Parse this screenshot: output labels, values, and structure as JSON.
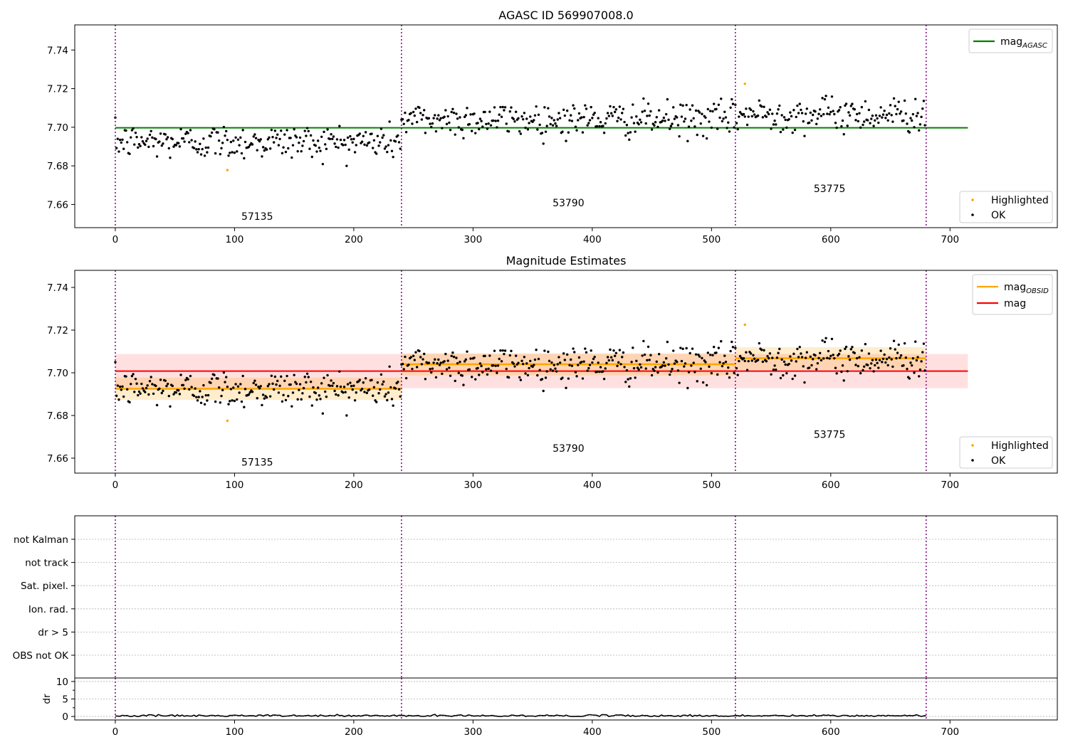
{
  "chart_data": [
    {
      "type": "scatter",
      "title": "AGASC ID 569907008.0",
      "xlabel": "",
      "ylabel": "",
      "xlim": [
        -34,
        790
      ],
      "ylim": [
        7.648,
        7.753
      ],
      "x_ticks": [
        "0",
        "100",
        "200",
        "300",
        "400",
        "500",
        "600",
        "700"
      ],
      "y_ticks": [
        "7.66",
        "7.68",
        "7.70",
        "7.72",
        "7.74"
      ],
      "legend_top": {
        "placement": "top-right",
        "entries": [
          {
            "label": "mag",
            "subscript": "AGASC",
            "color": "#008000"
          }
        ]
      },
      "legend_bottom": {
        "placement": "bottom-right",
        "entries": [
          {
            "label": "Highlighted",
            "color": "#ffa500"
          },
          {
            "label": "OK",
            "color": "#000000"
          }
        ]
      },
      "lines": [
        {
          "x": [
            0,
            715
          ],
          "y": [
            7.6997,
            7.6997
          ],
          "color": "#008000"
        }
      ],
      "obsid_labels": [
        {
          "text": "57135",
          "x": 119,
          "y": 7.652
        },
        {
          "text": "53790",
          "x": 380,
          "y": 7.659
        },
        {
          "text": "53775",
          "x": 599,
          "y": 7.6665
        }
      ],
      "highlighted": [
        {
          "x": 94,
          "y": 7.6778
        },
        {
          "x": 528,
          "y": 7.7225
        }
      ],
      "grid": false
    },
    {
      "type": "scatter",
      "title": "Magnitude Estimates",
      "xlabel": "",
      "ylabel": "",
      "xlim": [
        -34,
        790
      ],
      "ylim": [
        7.653,
        7.748
      ],
      "x_ticks": [
        "0",
        "100",
        "200",
        "300",
        "400",
        "500",
        "600",
        "700"
      ],
      "y_ticks": [
        "7.66",
        "7.68",
        "7.70",
        "7.72",
        "7.74"
      ],
      "legend_top": {
        "placement": "top-right",
        "entries": [
          {
            "label": "mag",
            "subscript": "OBSID",
            "color": "#ffa500"
          },
          {
            "label": "mag",
            "color": "#ff0000"
          }
        ]
      },
      "legend_bottom": {
        "placement": "bottom-right",
        "entries": [
          {
            "label": "Highlighted",
            "color": "#ffa500"
          },
          {
            "label": "OK",
            "color": "#000000"
          }
        ]
      },
      "mag_band": {
        "x": [
          0,
          715
        ],
        "y_low": 7.6928,
        "y_high": 7.7088,
        "mean": 7.7008,
        "color": "#ff0000"
      },
      "obsid_bands": [
        {
          "x": [
            0,
            240
          ],
          "mean": 7.6925,
          "y_low": 7.6873,
          "y_high": 7.6977
        },
        {
          "x": [
            240,
            520
          ],
          "mean": 7.704,
          "y_low": 7.6988,
          "y_high": 7.7092
        },
        {
          "x": [
            520,
            680
          ],
          "mean": 7.7068,
          "y_low": 7.7016,
          "y_high": 7.712
        }
      ],
      "obsid_labels": [
        {
          "text": "57135",
          "x": 119,
          "y": 7.6565
        },
        {
          "text": "53790",
          "x": 380,
          "y": 7.663
        },
        {
          "text": "53775",
          "x": 599,
          "y": 7.6695
        }
      ],
      "highlighted": [
        {
          "x": 94,
          "y": 7.6775
        },
        {
          "x": 528,
          "y": 7.7225
        }
      ],
      "grid": false
    },
    {
      "type": "line",
      "title": "",
      "xlabel": "",
      "ylabel": "",
      "categories": [
        "not Kalman",
        "not track",
        "Sat. pixel.",
        "Ion. rad.",
        "dr > 5",
        "OBS not OK"
      ],
      "grid": true,
      "flags": []
    },
    {
      "type": "line",
      "title": "",
      "xlabel": "",
      "ylabel": "dr",
      "xlim": [
        -34,
        790
      ],
      "ylim": [
        -1,
        11
      ],
      "x_ticks": [
        "0",
        "100",
        "200",
        "300",
        "400",
        "500",
        "600",
        "700"
      ],
      "y_ticks": [
        "0",
        "5",
        "10"
      ],
      "grid": true,
      "series": [
        {
          "x_range": [
            0,
            680
          ],
          "typical": 0.2,
          "max": 0.6
        }
      ]
    }
  ],
  "segments": [
    {
      "obsid": "57135",
      "x": [
        0,
        240
      ],
      "mean_mag": 7.6925,
      "scatter": 0.0045
    },
    {
      "obsid": "53790",
      "x": [
        240,
        520
      ],
      "mean_mag": 7.704,
      "scatter": 0.0045
    },
    {
      "obsid": "53775",
      "x": [
        520,
        680
      ],
      "mean_mag": 7.7068,
      "scatter": 0.0045
    }
  ],
  "obs_boundaries": [
    0,
    240,
    520,
    680
  ],
  "colors": {
    "agasc": "#008000",
    "obsid": "#ffa500",
    "mag": "#ff0000",
    "boundary": "#800080",
    "point_ok": "#000000",
    "point_highlighted": "#ffa500"
  }
}
